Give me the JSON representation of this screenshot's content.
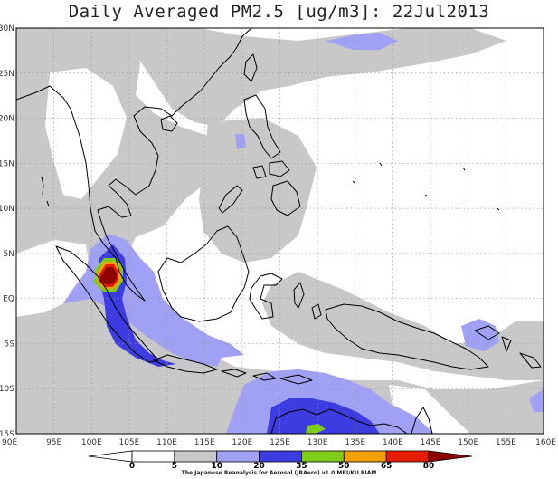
{
  "title": "Daily Averaged PM2.5 [ug/m3]: 22Jul2013",
  "credit": "The Japanese Reanalysis for Aerosol (JRAero) v1.0 MRI/KU RIAM",
  "map": {
    "lon_range": [
      90,
      160
    ],
    "lat_range": [
      -15,
      30
    ],
    "lon_ticks": [
      {
        "v": 90,
        "label": "90E"
      },
      {
        "v": 95,
        "label": "95E"
      },
      {
        "v": 100,
        "label": "100E"
      },
      {
        "v": 105,
        "label": "105E"
      },
      {
        "v": 110,
        "label": "110E"
      },
      {
        "v": 115,
        "label": "115E"
      },
      {
        "v": 120,
        "label": "120E"
      },
      {
        "v": 125,
        "label": "125E"
      },
      {
        "v": 130,
        "label": "130E"
      },
      {
        "v": 135,
        "label": "135E"
      },
      {
        "v": 140,
        "label": "140E"
      },
      {
        "v": 145,
        "label": "145E"
      },
      {
        "v": 150,
        "label": "150E"
      },
      {
        "v": 155,
        "label": "155E"
      },
      {
        "v": 160,
        "label": "160E"
      }
    ],
    "lat_ticks": [
      {
        "v": 30,
        "label": "30N"
      },
      {
        "v": 25,
        "label": "25N"
      },
      {
        "v": 20,
        "label": "20N"
      },
      {
        "v": 15,
        "label": "15N"
      },
      {
        "v": 10,
        "label": "10N"
      },
      {
        "v": 5,
        "label": "5N"
      },
      {
        "v": 0,
        "label": "EQ"
      },
      {
        "v": -5,
        "label": "5S"
      },
      {
        "v": -10,
        "label": "10S"
      },
      {
        "v": -15,
        "label": "15S"
      }
    ],
    "grid": "dotted"
  },
  "colorbar": {
    "levels": [
      "0",
      "5",
      "10",
      "20",
      "35",
      "50",
      "65",
      "80"
    ],
    "colors": [
      "#ffffff",
      "#ffffff",
      "#c8c8c8",
      "#a0a0f5",
      "#3c3ce0",
      "#7fcc1a",
      "#f5a000",
      "#e61e00",
      "#8c0000"
    ]
  }
}
